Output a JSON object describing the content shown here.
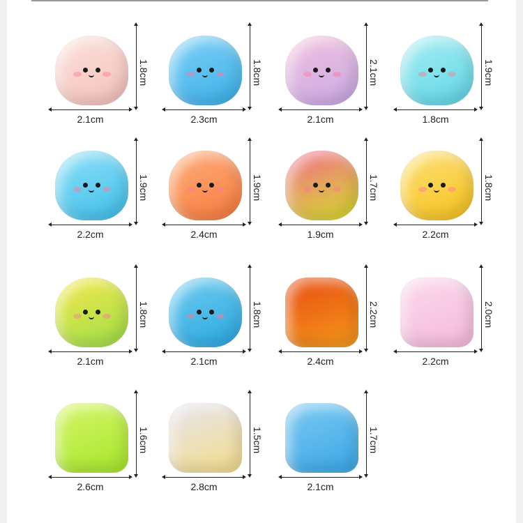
{
  "items": [
    {
      "width": "2.1cm",
      "height": "1.8cm",
      "color": "#f6c2bb",
      "color2": "#fbe0dc"
    },
    {
      "width": "2.3cm",
      "height": "1.8cm",
      "color": "#3cb0ea",
      "color2": "#7fd0f5"
    },
    {
      "width": "2.1cm",
      "height": "2.1cm",
      "color": "#c9a8e6",
      "color2": "#f3c3de"
    },
    {
      "width": "1.8cm",
      "height": "1.9cm",
      "color": "#5fd6e6",
      "color2": "#a8eef3"
    },
    {
      "width": "2.2cm",
      "height": "1.9cm",
      "color": "#3fbfec",
      "color2": "#8fe0f7"
    },
    {
      "width": "2.4cm",
      "height": "1.9cm",
      "color": "#f97b3f",
      "color2": "#fcae7a"
    },
    {
      "width": "1.9cm",
      "height": "1.7cm",
      "color": "#d8df2c",
      "color2": "#f06a8c"
    },
    {
      "width": "2.2cm",
      "height": "1.8cm",
      "color": "#f7c21c",
      "color2": "#fde07a"
    },
    {
      "width": "2.1cm",
      "height": "1.8cm",
      "color": "#9fe04a",
      "color2": "#f5e64a"
    },
    {
      "width": "2.1cm",
      "height": "1.8cm",
      "color": "#2aa8e2",
      "color2": "#6fcbef"
    },
    {
      "width": "2.4cm",
      "height": "2.2cm",
      "color": "#f59a1c",
      "color2": "#e84a10"
    },
    {
      "width": "2.2cm",
      "height": "2.0cm",
      "color": "#f5b9dc",
      "color2": "#fbd9ec"
    },
    {
      "width": "2.6cm",
      "height": "1.6cm",
      "color": "#a6e62a",
      "color2": "#d6f56a"
    },
    {
      "width": "2.8cm",
      "height": "1.5cm",
      "color": "#f3dc8a",
      "color2": "#e6e4f0"
    },
    {
      "width": "2.1cm",
      "height": "1.7cm",
      "color": "#3aa6e6",
      "color2": "#7ccaf2"
    }
  ],
  "faces": [
    true,
    true,
    true,
    true,
    true,
    true,
    true,
    true,
    true,
    true,
    false,
    false,
    false,
    false,
    false
  ]
}
